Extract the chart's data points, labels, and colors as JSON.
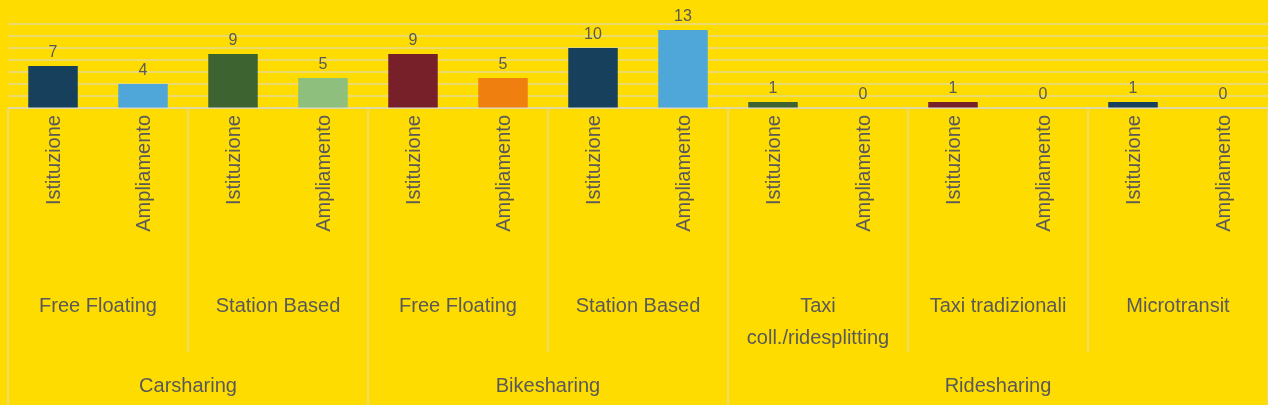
{
  "chart_data": {
    "type": "bar",
    "categories": [
      "Istituzione",
      "Ampliamento",
      "Istituzione",
      "Ampliamento",
      "Istituzione",
      "Ampliamento",
      "Istituzione",
      "Ampliamento",
      "Istituzione",
      "Ampliamento",
      "Istituzione",
      "Ampliamento",
      "Istituzione",
      "Ampliamento"
    ],
    "values": [
      7,
      4,
      9,
      5,
      9,
      5,
      10,
      13,
      1,
      0,
      1,
      0,
      1,
      0
    ],
    "colors": [
      "#17405c",
      "#4fa7d9",
      "#3d6430",
      "#8fbf7d",
      "#78202a",
      "#ef7f0e",
      "#17405c",
      "#4fa7d9",
      "#3d6430",
      "#4fa7d9",
      "#78202a",
      "#ef7f0e",
      "#17405c",
      "#4fa7d9"
    ],
    "data_labels": true,
    "ylim": [
      0,
      14
    ],
    "yticks": [
      {
        "value": 0,
        "label": null
      },
      {
        "value": 2,
        "label": null
      },
      {
        "value": 4,
        "label": null
      },
      {
        "value": 6,
        "label": null
      },
      {
        "value": 8,
        "label": null
      },
      {
        "value": 10,
        "label": null
      },
      {
        "value": 12,
        "label": null
      },
      {
        "value": 14,
        "label": null
      }
    ],
    "tick_labels": "x",
    "grid": "y",
    "annotations": [
      "Free Floating",
      "Station Based",
      "Free Floating",
      "Station Based",
      "Taxi coll./ridesplitting",
      "Taxi tradizionali",
      "Microtransit",
      "Carsharing",
      "Bikesharing",
      "Ridesharing"
    ]
  }
}
